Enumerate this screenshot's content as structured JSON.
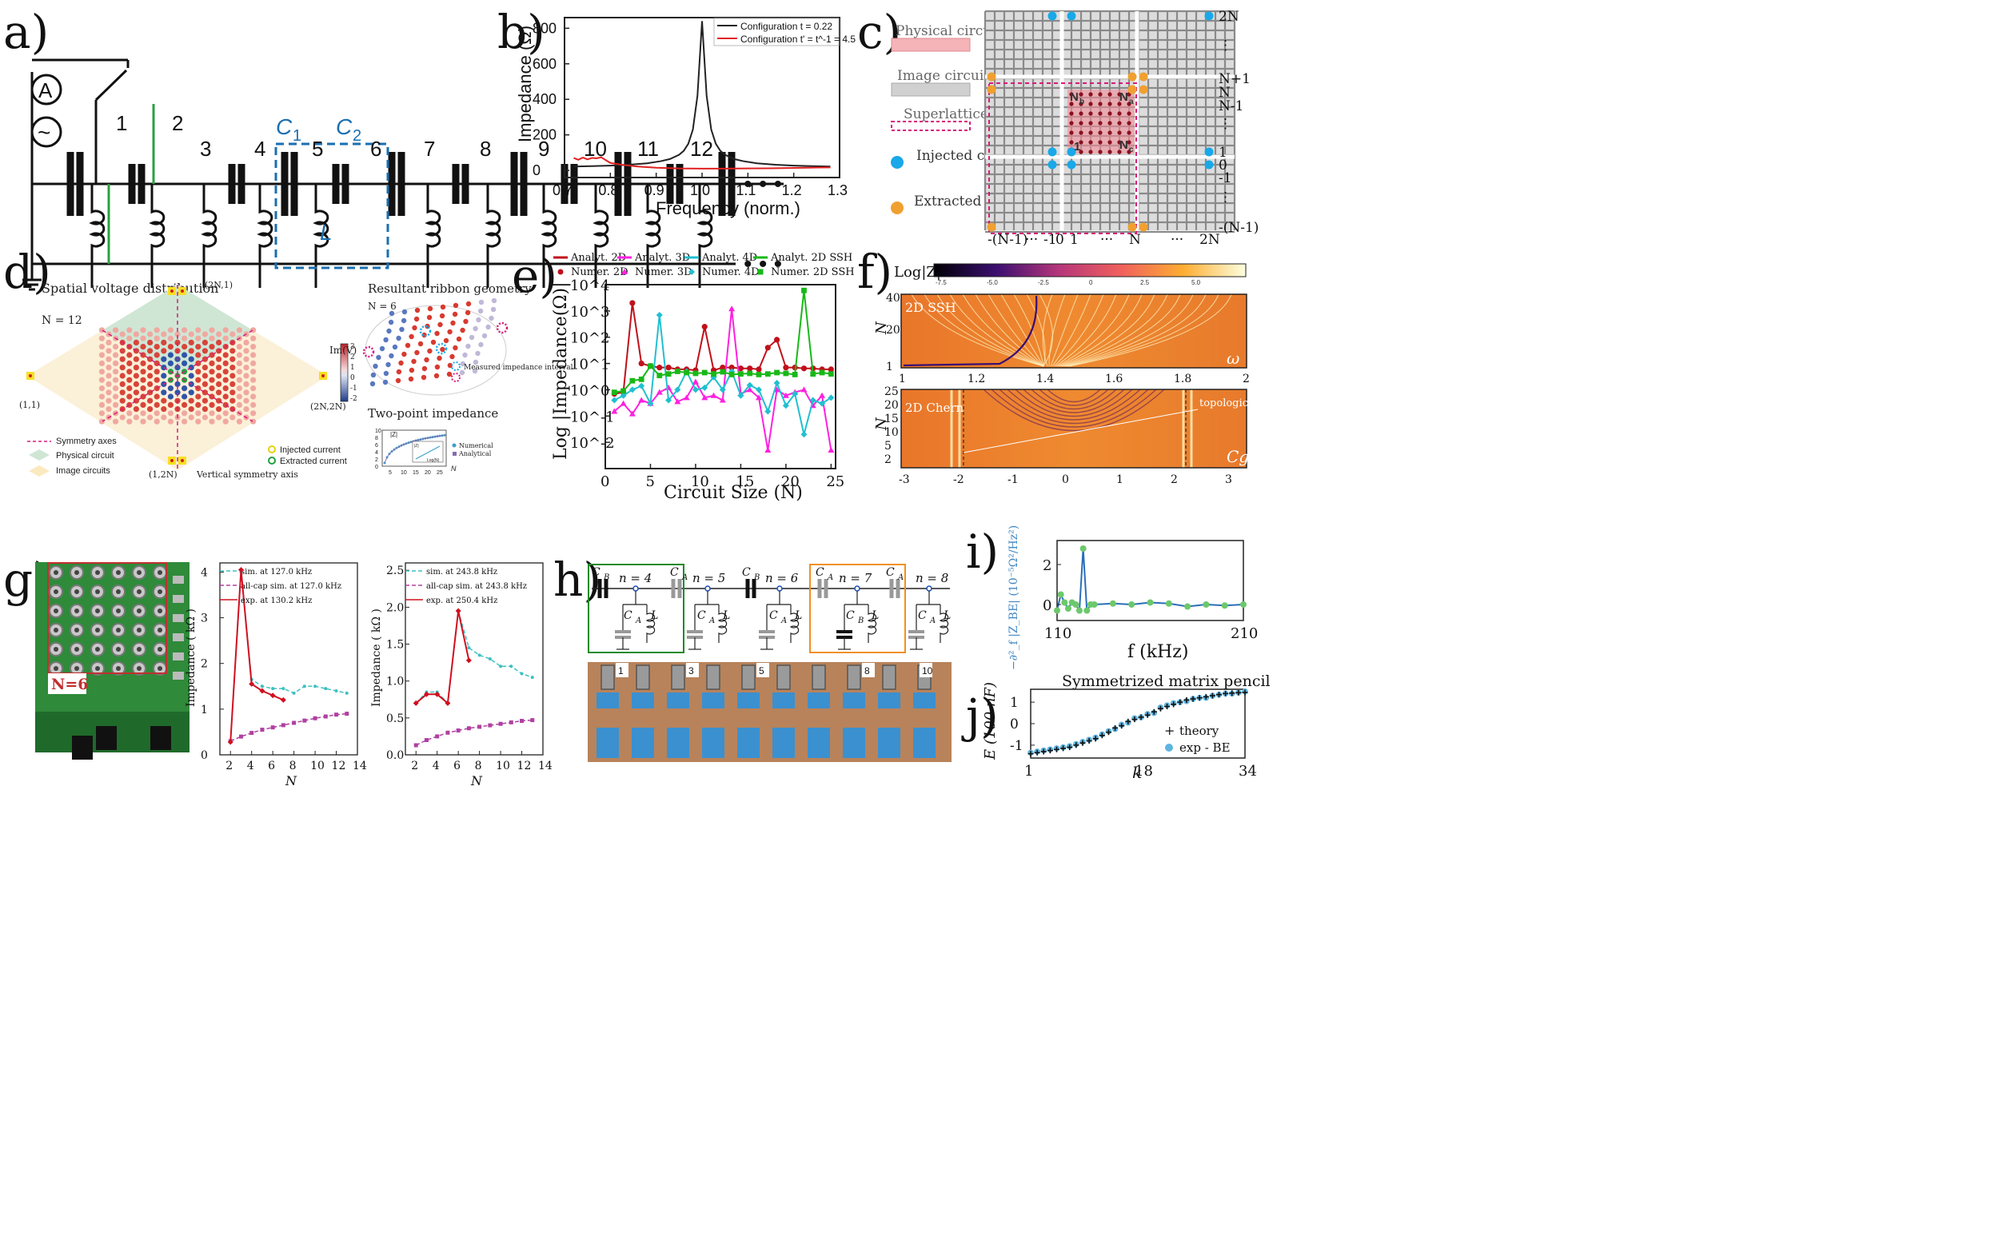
{
  "panel_labels": [
    "a)",
    "b)",
    "c)",
    "d)",
    "e)",
    "f)",
    "g)",
    "h)",
    "i)",
    "j)"
  ],
  "panel_a": {
    "meters": [
      "A",
      "~"
    ],
    "node_labels": [
      "1",
      "2",
      "3",
      "4",
      "5",
      "6",
      "7",
      "8",
      "9",
      "10",
      "11",
      "12"
    ],
    "cap_labels": [
      "C",
      "1",
      "C",
      "2"
    ],
    "inductor_label": "L",
    "ellipsis": "• • •"
  },
  "panel_b": {
    "chart_data": {
      "type": "line",
      "title": "",
      "xlabel": "Frequency (norm.)",
      "ylabel": "Impedance (Ω)",
      "xlim": [
        0.7,
        1.3
      ],
      "ylim": [
        -40,
        860
      ],
      "xticks": [
        "0.7",
        "0.8",
        "0.9",
        "1.0",
        "1.1",
        "1.2",
        "1.3"
      ],
      "yticks": [
        "0",
        "200",
        "400",
        "600",
        "800"
      ],
      "series": [
        {
          "name": "Configuration t = 0.22",
          "color": "#222222",
          "x": [
            0.72,
            0.76,
            0.8,
            0.84,
            0.88,
            0.91,
            0.93,
            0.95,
            0.96,
            0.97,
            0.98,
            0.99,
            1.0,
            1.01,
            1.02,
            1.03,
            1.04,
            1.05,
            1.07,
            1.09,
            1.12,
            1.16,
            1.2,
            1.24,
            1.28
          ],
          "y": [
            22,
            24,
            27,
            32,
            40,
            52,
            64,
            88,
            110,
            150,
            230,
            420,
            840,
            420,
            230,
            150,
            110,
            88,
            64,
            52,
            40,
            32,
            27,
            24,
            22
          ]
        },
        {
          "name": "Configuration t' = t^-1 = 4.5",
          "color": "#e02020",
          "x": [
            0.72,
            0.73,
            0.74,
            0.75,
            0.76,
            0.77,
            0.78,
            0.79,
            0.8,
            0.83,
            0.86,
            0.9,
            0.95,
            1.0,
            1.05,
            1.1,
            1.15,
            1.2,
            1.25,
            1.28
          ],
          "y": [
            70,
            60,
            72,
            62,
            70,
            68,
            74,
            58,
            42,
            30,
            22,
            15,
            11,
            10,
            10,
            11,
            12,
            14,
            16,
            17
          ]
        }
      ]
    }
  },
  "panel_c": {
    "legend": [
      "Physical circuit",
      "Image circuits",
      "Superlattice",
      "Injected current",
      "Extracted current"
    ],
    "right_ticks": [
      "2N",
      "⋮",
      "N+1",
      "N",
      "N-1",
      "⋮",
      "1",
      "0",
      "-1",
      "⋮",
      "-(N-1)"
    ],
    "bottom_ticks": [
      "-(N-1)",
      "···",
      "-1",
      "0",
      "1",
      "···",
      "N",
      "···",
      "2N"
    ],
    "corner_labels": [
      "N",
      "b",
      "N",
      "a",
      "N",
      "c",
      "1"
    ]
  },
  "panel_d": {
    "title": "Spatial voltage distribution",
    "n_label": "N = 12",
    "coord_labels": [
      "(2N,1)",
      "(1,1)",
      "(2N,2N)",
      "(1,2N)"
    ],
    "colorbar_title": "Im(V)",
    "colorbar_ticks": [
      "3",
      "2",
      "1",
      "0",
      "-1",
      "-2"
    ],
    "legend": [
      "Symmetry axes",
      "Physical circuit",
      "Image circuits",
      "Injected current",
      "Extracted current"
    ],
    "axis_note": "Vertical symmetry axis",
    "ribbon_title": "Resultant ribbon geometry",
    "ribbon_n": "N = 6",
    "measured": "Measured impedance interval",
    "twopoint_title": "Two-point impedance",
    "inset_legend": [
      "Numerical",
      "Analytical"
    ],
    "inset_yticks": [
      "10",
      "8",
      "6",
      "4",
      "2",
      "0"
    ],
    "inset_xticks": [
      "5",
      "10",
      "15",
      "20",
      "25"
    ],
    "inset_ylabel": "|Z|",
    "inset_xlabel": "N",
    "inset_mini": [
      "|Z|",
      "Log(N)"
    ]
  },
  "panel_e": {
    "chart_data": {
      "type": "line",
      "xlabel": "Circuit Size (N)",
      "ylabel": "Log |Impedance(Ω)|",
      "xlim": [
        0,
        25.5
      ],
      "ylim_log10": [
        -3,
        4
      ],
      "xticks": [
        "0",
        "5",
        "10",
        "15",
        "20",
        "25"
      ],
      "yticks": [
        "10^-2",
        "10^-1",
        "10^0",
        "10^1",
        "10^2",
        "10^3",
        "10^4"
      ],
      "legend": [
        "Analyt. 2D",
        "Analyt. 3D",
        "Analyt. 4D",
        "Analyt. 2D SSH",
        "Numer. 2D",
        "Numer. 3D",
        "Numer. 4D",
        "Numer. 2D SSH"
      ],
      "x": [
        1,
        2,
        3,
        4,
        5,
        6,
        7,
        8,
        9,
        10,
        11,
        12,
        13,
        14,
        15,
        16,
        17,
        18,
        19,
        20,
        21,
        22,
        23,
        24,
        25
      ],
      "series": [
        {
          "name": "2D",
          "color": "#c0101a",
          "marker": "circle",
          "values": [
            0.7,
            0.8,
            2000,
            10,
            8,
            7,
            7,
            6,
            6,
            5.5,
            250,
            5.5,
            7,
            7,
            6.5,
            6.5,
            6,
            40,
            80,
            7,
            7,
            6.5,
            6.5,
            6,
            6
          ]
        },
        {
          "name": "3D",
          "color": "#ff20e0",
          "marker": "triangle",
          "values": [
            0.15,
            0.3,
            0.12,
            0.4,
            0.3,
            0.8,
            1.2,
            0.35,
            0.5,
            2.0,
            0.5,
            0.6,
            0.4,
            1200,
            0.7,
            1.0,
            0.5,
            0.005,
            1.0,
            0.6,
            0.8,
            1.0,
            0.25,
            0.6,
            0.005
          ]
        },
        {
          "name": "4D",
          "color": "#20c0d0",
          "marker": "diamond",
          "values": [
            0.4,
            0.6,
            1.0,
            1.4,
            0.3,
            700,
            0.4,
            1.0,
            5.0,
            1.0,
            1.2,
            3.0,
            1.0,
            5.0,
            0.6,
            1.5,
            1.0,
            0.15,
            1.8,
            0.25,
            0.7,
            0.02,
            0.4,
            0.3,
            0.5
          ]
        },
        {
          "name": "2D SSH",
          "color": "#18b818",
          "marker": "square",
          "values": [
            0.8,
            0.9,
            2.2,
            2.5,
            8.0,
            3.5,
            4.0,
            5.0,
            4.5,
            4.2,
            4.5,
            4.0,
            4.8,
            3.8,
            4.0,
            4.2,
            3.8,
            4.0,
            4.5,
            4.2,
            3.8,
            6000,
            4.0,
            4.5,
            4.0
          ]
        }
      ]
    }
  },
  "panel_f": {
    "colorbar_title": "Log|Z|",
    "colorbar_ticks": [
      "-7.5",
      "-5.0",
      "-2.5",
      "0",
      "2.5",
      "5.0"
    ],
    "top_title": "2D SSH",
    "top_yticks": [
      "40",
      "20",
      "1"
    ],
    "top_xticks": [
      "1",
      "1.2",
      "1.4",
      "1.6",
      "1.8",
      "2"
    ],
    "top_var": "ω",
    "bottom_title": "2D Chern",
    "bottom_yticks": [
      "25",
      "20",
      "15",
      "10",
      "5",
      "2"
    ],
    "bottom_xticks": [
      "-3",
      "-2",
      "-1",
      "0",
      "1",
      "2",
      "3"
    ],
    "bottom_var": "Cg",
    "annotation": "topological",
    "ylabel": "N"
  },
  "panel_g": {
    "photo_label": "N=6",
    "chart_data": [
      {
        "type": "line",
        "xlabel": "N",
        "ylabel": "Impedance ( kΩ )",
        "xlim": [
          1,
          14
        ],
        "ylim": [
          0,
          4.2
        ],
        "xticks": [
          "2",
          "4",
          "6",
          "8",
          "10",
          "12",
          "14"
        ],
        "yticks": [
          "0",
          "1",
          "2",
          "3",
          "4"
        ],
        "series": [
          {
            "name": "sim. at 127.0 kHz",
            "color": "#3cc0c0",
            "x": [
              2,
              3,
              4,
              5,
              6,
              7,
              8,
              9,
              10,
              11,
              12,
              13
            ],
            "values": [
              0.3,
              4.0,
              1.65,
              1.5,
              1.45,
              1.45,
              1.35,
              1.5,
              1.5,
              1.45,
              1.4,
              1.35
            ]
          },
          {
            "name": "all-cap sim. at 127.0 kHz",
            "color": "#b040a0",
            "x": [
              2,
              3,
              4,
              5,
              6,
              7,
              8,
              9,
              10,
              11,
              12,
              13
            ],
            "values": [
              0.3,
              0.4,
              0.48,
              0.55,
              0.6,
              0.65,
              0.7,
              0.75,
              0.8,
              0.84,
              0.88,
              0.9
            ]
          },
          {
            "name": "exp. at 130.2 kHz",
            "color": "#d01020",
            "x": [
              2,
              3,
              4,
              5,
              6,
              7
            ],
            "values": [
              0.28,
              4.05,
              1.55,
              1.4,
              1.3,
              1.2
            ]
          }
        ]
      },
      {
        "type": "line",
        "xlabel": "N",
        "ylabel": "Impedance ( kΩ )",
        "xlim": [
          1,
          14
        ],
        "ylim": [
          0,
          2.6
        ],
        "xticks": [
          "2",
          "4",
          "6",
          "8",
          "10",
          "12",
          "14"
        ],
        "yticks": [
          "0.0",
          "0.5",
          "1.0",
          "1.5",
          "2.0",
          "2.5"
        ],
        "series": [
          {
            "name": "sim. at 243.8 kHz",
            "color": "#3cc0c0",
            "x": [
              2,
              3,
              4,
              5,
              6,
              7,
              8,
              9,
              10,
              11,
              12,
              13
            ],
            "values": [
              0.7,
              0.85,
              0.85,
              0.7,
              1.95,
              1.45,
              1.35,
              1.3,
              1.2,
              1.2,
              1.1,
              1.05
            ]
          },
          {
            "name": "all-cap sim. at 243.8 kHz",
            "color": "#b040a0",
            "x": [
              2,
              3,
              4,
              5,
              6,
              7,
              8,
              9,
              10,
              11,
              12,
              13
            ],
            "values": [
              0.13,
              0.2,
              0.25,
              0.3,
              0.33,
              0.36,
              0.38,
              0.4,
              0.42,
              0.44,
              0.46,
              0.47
            ]
          },
          {
            "name": "exp. at 250.4 kHz",
            "color": "#d01020",
            "x": [
              2,
              3,
              4,
              5,
              6,
              7
            ],
            "values": [
              0.7,
              0.82,
              0.82,
              0.7,
              1.95,
              1.28
            ]
          }
        ]
      }
    ]
  },
  "panel_h": {
    "labels": [
      "C",
      "B",
      "n = 4",
      "C",
      "A",
      "n = 5",
      "C",
      "B",
      "n = 6",
      "C",
      "A",
      "n = 7",
      "C",
      "A",
      "n = 8",
      "C",
      "A",
      "L",
      "C",
      "A",
      "L",
      "C",
      "A",
      "L",
      "C",
      "B",
      "L",
      "C",
      "A",
      "L"
    ],
    "photo_numbers": [
      "1",
      "3",
      "5",
      "8",
      "10"
    ]
  },
  "panel_i": {
    "chart_data": {
      "type": "line",
      "xlabel": "f (kHz)",
      "ylabel": "−∂²_f |Z_BE| (10⁻⁵Ω²/Hz²)",
      "xlim": [
        110,
        210
      ],
      "ylim": [
        -0.8,
        3.2
      ],
      "xticks": [
        "110",
        "210"
      ],
      "yticks": [
        "0",
        "2"
      ],
      "x": [
        110,
        112,
        114,
        116,
        118,
        120,
        122,
        124,
        126,
        128,
        130,
        140,
        150,
        160,
        170,
        180,
        190,
        200,
        210
      ],
      "values": [
        -0.3,
        0.5,
        0.1,
        -0.2,
        0.1,
        0.0,
        -0.3,
        2.8,
        -0.3,
        0.0,
        0.0,
        0.05,
        0.0,
        0.1,
        0.05,
        -0.1,
        0.0,
        -0.05,
        0.0
      ]
    }
  },
  "panel_j": {
    "chart_data": {
      "type": "scatter",
      "title": "Symmetrized matrix pencil",
      "xlabel": "k",
      "ylabel": "E (100 nF)",
      "xlim": [
        1,
        34
      ],
      "ylim": [
        -1.6,
        1.6
      ],
      "xticks": [
        "1",
        "18",
        "34"
      ],
      "yticks": [
        "-1",
        "0",
        "1"
      ],
      "legend": [
        "theory",
        "exp - BE"
      ],
      "x": [
        1,
        2,
        3,
        4,
        5,
        6,
        7,
        8,
        9,
        10,
        11,
        12,
        13,
        14,
        15,
        16,
        17,
        18,
        19,
        20,
        21,
        22,
        23,
        24,
        25,
        26,
        27,
        28,
        29,
        30,
        31,
        32,
        33,
        34
      ],
      "theory": [
        -1.4,
        -1.35,
        -1.3,
        -1.25,
        -1.2,
        -1.15,
        -1.1,
        -1.0,
        -0.9,
        -0.8,
        -0.7,
        -0.55,
        -0.4,
        -0.2,
        -0.1,
        0.1,
        0.2,
        0.3,
        0.4,
        0.55,
        0.7,
        0.8,
        0.9,
        1.0,
        1.1,
        1.15,
        1.2,
        1.25,
        1.3,
        1.35,
        1.4,
        1.42,
        1.44,
        1.45
      ],
      "experiment": [
        -1.35,
        -1.3,
        -1.25,
        -1.2,
        -1.15,
        -1.1,
        -1.05,
        -0.95,
        -0.85,
        -0.75,
        -0.65,
        -0.5,
        -0.35,
        -0.25,
        -0.05,
        0.05,
        0.25,
        0.3,
        0.45,
        0.5,
        0.75,
        0.85,
        0.95,
        1.0,
        1.05,
        1.15,
        1.2,
        1.2,
        1.3,
        1.35,
        1.4,
        1.4,
        1.45,
        1.5
      ]
    }
  }
}
